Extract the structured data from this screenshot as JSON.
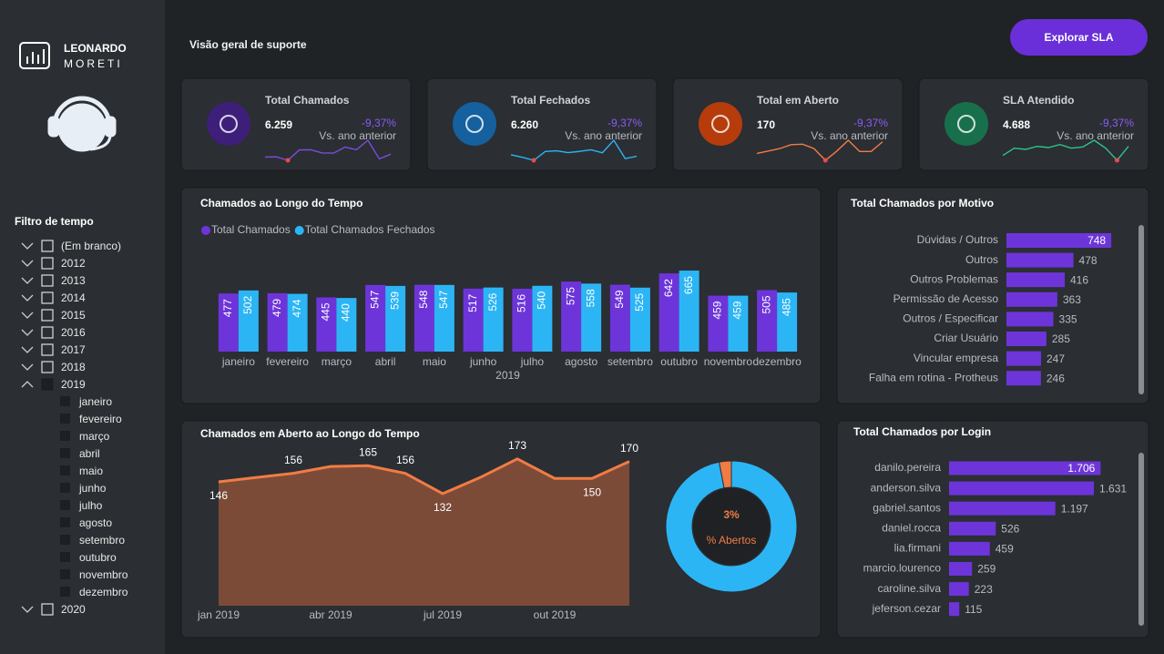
{
  "brand": {
    "name": "LEONARDO",
    "surname": "MORETI"
  },
  "header": {
    "title": "Visão geral de suporte",
    "button": "Explorar SLA"
  },
  "filter": {
    "title": "Filtro de tempo",
    "items": [
      {
        "label": "(Em branco)"
      },
      {
        "label": "2012"
      },
      {
        "label": "2013"
      },
      {
        "label": "2014"
      },
      {
        "label": "2015"
      },
      {
        "label": "2016"
      },
      {
        "label": "2017"
      },
      {
        "label": "2018"
      },
      {
        "label": "2019",
        "children": [
          "janeiro",
          "fevereiro",
          "março",
          "abril",
          "maio",
          "junho",
          "julho",
          "agosto",
          "setembro",
          "outubro",
          "novembro",
          "dezembro"
        ]
      },
      {
        "label": "2020"
      }
    ]
  },
  "kpis": [
    {
      "label": "Total Chamados",
      "value": "6.259",
      "change": "-9,37%",
      "change_label": "Vs. ano anterior",
      "color": "#3d1f7a",
      "line_color": "#7c4ddb",
      "trend": [
        477,
        479,
        445,
        547,
        548,
        517,
        516,
        575,
        549,
        642,
        459,
        505
      ]
    },
    {
      "label": "Total Fechados",
      "value": "6.260",
      "change": "-9,37%",
      "change_label": "Vs. ano anterior",
      "color": "#15609e",
      "line_color": "#2cb5f5",
      "trend": [
        502,
        474,
        440,
        539,
        547,
        526,
        540,
        558,
        525,
        665,
        459,
        485
      ]
    },
    {
      "label": "Total em Aberto",
      "value": "170",
      "change": "-9,37%",
      "change_label": "Vs. ano anterior",
      "color": "#b63c0c",
      "line_color": "#f07c45",
      "trend": [
        146,
        151,
        156,
        164,
        165,
        156,
        132,
        151,
        173,
        150,
        150,
        170
      ]
    },
    {
      "label": "SLA Atendido",
      "value": "4.688",
      "change": "-9,37%",
      "change_label": "Vs. ano anterior",
      "color": "#17704b",
      "line_color": "#2ec48a",
      "trend": [
        380,
        392,
        390,
        395,
        393,
        398,
        392,
        394,
        405,
        392,
        372,
        395
      ]
    }
  ],
  "chart_data": [
    {
      "type": "bar",
      "title": "Chamados ao Longo do Tempo",
      "categories": [
        "janeiro",
        "fevereiro",
        "março",
        "abril",
        "maio",
        "junho",
        "julho",
        "agosto",
        "setembro",
        "outubro",
        "novembro",
        "dezembro"
      ],
      "xlabel": "2019",
      "ylim": [
        0,
        800
      ],
      "legend": "top-left",
      "series": [
        {
          "name": "Total Chamados",
          "color": "#6d35d9",
          "values": [
            477,
            479,
            445,
            547,
            548,
            517,
            516,
            575,
            549,
            642,
            459,
            505
          ]
        },
        {
          "name": "Total Chamados Fechados",
          "color": "#2cb5f5",
          "values": [
            502,
            474,
            440,
            539,
            547,
            526,
            540,
            558,
            525,
            665,
            459,
            485
          ]
        }
      ]
    },
    {
      "type": "bar",
      "orientation": "horizontal",
      "title": "Total Chamados por Motivo",
      "categories": [
        "Dúvidas / Outros",
        "Outros",
        "Outros Problemas",
        "Permissão de Acesso",
        "Outros / Especificar",
        "Criar Usuário",
        "Vincular empresa",
        "Falha em rotina - Protheus"
      ],
      "values": [
        748,
        478,
        416,
        363,
        335,
        285,
        247,
        246
      ],
      "color": "#6d35d9",
      "xlim": [
        0,
        850
      ]
    },
    {
      "type": "area",
      "title": "Chamados em Aberto ao Longo do Tempo",
      "categories": [
        "jan 2019",
        null,
        null,
        "abr 2019",
        null,
        null,
        "jul 2019",
        null,
        null,
        "out 2019",
        null,
        null
      ],
      "values": [
        146,
        151,
        156,
        164,
        165,
        156,
        132,
        151,
        173,
        150,
        150,
        170
      ],
      "value_labels": [
        "146",
        null,
        "156",
        null,
        "165",
        "156",
        "132",
        null,
        "173",
        null,
        "150",
        "170"
      ],
      "ylim": [
        0,
        176
      ],
      "color": "#f07c45",
      "fill": "#7b4b38"
    },
    {
      "type": "pie",
      "hole": true,
      "values": [
        3,
        97
      ],
      "value_labels": [
        "3%",
        null
      ],
      "center_label": "% Abertos",
      "colors": [
        "#f07c45",
        "#2cb5f5"
      ]
    },
    {
      "type": "bar",
      "orientation": "horizontal",
      "title": "Total Chamados por Login",
      "categories": [
        "danilo.pereira",
        "anderson.silva",
        "gabriel.santos",
        "daniel.rocca",
        "lia.firmani",
        "marcio.lourenco",
        "caroline.silva",
        "jeferson.cezar"
      ],
      "values": [
        1706,
        1631,
        1197,
        526,
        459,
        259,
        223,
        115
      ],
      "value_labels": [
        "1.706",
        "1.631",
        "1.197",
        "526",
        "459",
        "259",
        "223",
        "115"
      ],
      "color": "#6d35d9",
      "xlim": [
        0,
        2000
      ]
    }
  ]
}
